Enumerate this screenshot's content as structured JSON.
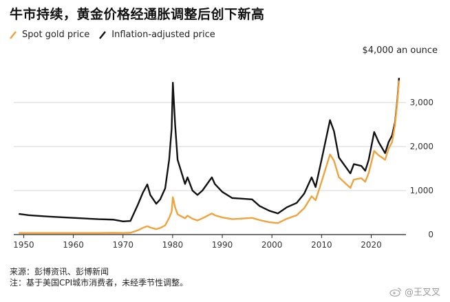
{
  "header": {
    "title": "牛市持续，黄金价格经通胀调整后创下新高"
  },
  "legend": {
    "items": [
      {
        "label": "Spot gold price",
        "color": "#f0a23c"
      },
      {
        "label": "Inflation-adjusted price",
        "color": "#111111"
      }
    ]
  },
  "footer": {
    "source": "来源：彭博资讯、彭博新闻",
    "note": "注：基于美国CPI城市消费者，未经季节性调整。"
  },
  "watermark": {
    "text": "@王叉叉"
  },
  "chart_data": {
    "type": "line",
    "title": "牛市持续，黄金价格经通胀调整后创下新高",
    "unit_label": "$4,000 an ounce",
    "xlim": [
      1948,
      2027
    ],
    "ylim": [
      0,
      4000
    ],
    "x_ticks": [
      1950,
      1960,
      1970,
      1980,
      1990,
      2000,
      2010,
      2020
    ],
    "y_ticks": [
      {
        "value": 0,
        "label": "0"
      },
      {
        "value": 1000,
        "label": "1,000"
      },
      {
        "value": 2000,
        "label": "2,000"
      },
      {
        "value": 3000,
        "label": "3,000"
      }
    ],
    "series": [
      {
        "name": "Spot gold price",
        "color": "#f0a23c",
        "x": [
          1949,
          1955,
          1960,
          1965,
          1968,
          1970,
          1971.5,
          1973,
          1974,
          1974.9,
          1975.5,
          1976.7,
          1977.5,
          1978.5,
          1979.3,
          1979.8,
          1980.05,
          1980.5,
          1981,
          1982.5,
          1983,
          1984,
          1985,
          1986,
          1987.9,
          1988.5,
          1990,
          1992,
          1993.5,
          1996,
          1997.5,
          1999.5,
          2001.2,
          2003,
          2005,
          2006.5,
          2008,
          2008.8,
          2010,
          2011.7,
          2012.5,
          2013.5,
          2015.8,
          2016.5,
          2018,
          2018.8,
          2019.5,
          2020.6,
          2021.5,
          2022.8,
          2023.5,
          2024.2,
          2024.8,
          2025.3,
          2025.6
        ],
        "y": [
          35,
          35,
          35,
          35,
          39,
          36,
          41,
          97,
          154,
          190,
          160,
          124,
          150,
          210,
          380,
          520,
          850,
          620,
          460,
          370,
          430,
          360,
          320,
          370,
          480,
          440,
          390,
          350,
          360,
          380,
          330,
          280,
          260,
          360,
          440,
          600,
          870,
          780,
          1200,
          1820,
          1680,
          1300,
          1060,
          1250,
          1280,
          1200,
          1400,
          1900,
          1800,
          1700,
          1950,
          2100,
          2500,
          3050,
          3500
        ]
      },
      {
        "name": "Inflation-adjusted price",
        "color": "#111111",
        "x": [
          1949,
          1951,
          1955,
          1960,
          1965,
          1968,
          1970,
          1971.5,
          1973,
          1974,
          1974.9,
          1975.5,
          1976.7,
          1977.5,
          1978.5,
          1979.3,
          1979.8,
          1980.05,
          1980.5,
          1981,
          1982.5,
          1983,
          1984,
          1985,
          1986,
          1987.9,
          1988.5,
          1990,
          1992,
          1993.5,
          1996,
          1997.5,
          1999.5,
          2001.2,
          2003,
          2005,
          2006.5,
          2008,
          2008.8,
          2010,
          2011.7,
          2012.5,
          2013.5,
          2015.8,
          2016.5,
          2018,
          2018.8,
          2019.5,
          2020.6,
          2021.5,
          2022.8,
          2023.5,
          2024.2,
          2024.8,
          2025.3,
          2025.6
        ],
        "y": [
          470,
          440,
          410,
          380,
          350,
          340,
          300,
          310,
          680,
          950,
          1140,
          900,
          700,
          800,
          1050,
          1700,
          2400,
          3450,
          2500,
          1700,
          1150,
          1300,
          1000,
          900,
          1000,
          1300,
          1150,
          970,
          830,
          820,
          800,
          650,
          540,
          480,
          620,
          720,
          930,
          1300,
          1080,
          1700,
          2600,
          2350,
          1750,
          1390,
          1600,
          1560,
          1450,
          1700,
          2330,
          2100,
          1850,
          2100,
          2250,
          2550,
          3100,
          3560
        ]
      }
    ],
    "grid": "horizontal",
    "legend_position": "top-left"
  }
}
